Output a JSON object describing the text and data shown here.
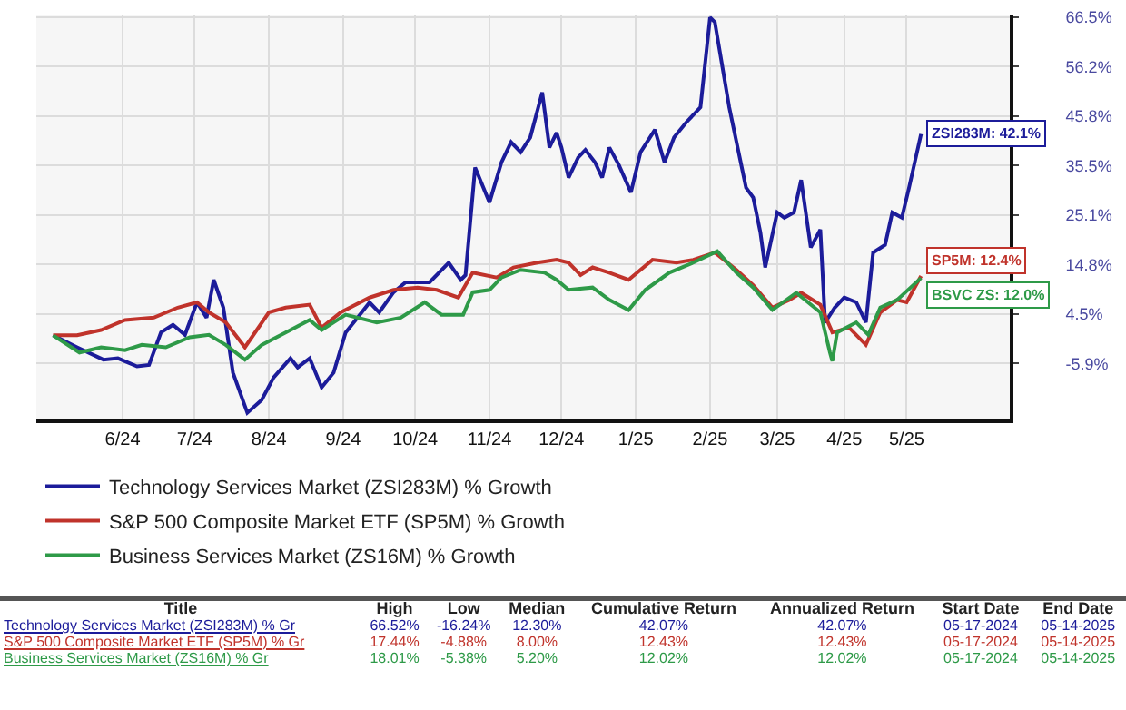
{
  "chart_data": {
    "type": "line",
    "xlim": [
      "2024-05-10",
      "2025-06-20"
    ],
    "xticks": [
      {
        "value": "2024-06-15",
        "label": "6/24"
      },
      {
        "value": "2024-07-15",
        "label": "7/24"
      },
      {
        "value": "2024-08-15",
        "label": "8/24"
      },
      {
        "value": "2024-09-15",
        "label": "9/24"
      },
      {
        "value": "2024-10-15",
        "label": "10/24"
      },
      {
        "value": "2024-11-15",
        "label": "11/24"
      },
      {
        "value": "2024-12-15",
        "label": "12/24"
      },
      {
        "value": "2025-01-15",
        "label": "1/25"
      },
      {
        "value": "2025-02-15",
        "label": "2/25"
      },
      {
        "value": "2025-03-15",
        "label": "3/25"
      },
      {
        "value": "2025-04-12",
        "label": "4/25"
      },
      {
        "value": "2025-05-08",
        "label": "5/25"
      }
    ],
    "ylim": [
      -17.6,
      67.1
    ],
    "yticks": [
      {
        "value": -5.9,
        "label": "-5.9%"
      },
      {
        "value": 4.5,
        "label": "4.5%"
      },
      {
        "value": 14.8,
        "label": "14.8%"
      },
      {
        "value": 25.1,
        "label": "25.1%"
      },
      {
        "value": 35.5,
        "label": "35.5%"
      },
      {
        "value": 45.8,
        "label": "45.8%"
      },
      {
        "value": 56.2,
        "label": "56.2%"
      },
      {
        "value": 66.5,
        "label": "66.5%"
      }
    ],
    "grid": true,
    "legend": "bottom",
    "line_style": "solid",
    "marker": "none",
    "series": [
      {
        "name": "Technology Services Market (ZSI283M) % Growth",
        "color": "#1c1c9a",
        "x": [
          "2024-05-17",
          "2024-05-27",
          "2024-06-07",
          "2024-06-13",
          "2024-06-21",
          "2024-06-26",
          "2024-07-01",
          "2024-07-06",
          "2024-07-11",
          "2024-07-16",
          "2024-07-20",
          "2024-07-23",
          "2024-07-27",
          "2024-07-31",
          "2024-08-06",
          "2024-08-12",
          "2024-08-17",
          "2024-08-24",
          "2024-08-27",
          "2024-09-01",
          "2024-09-06",
          "2024-09-11",
          "2024-09-16",
          "2024-09-21",
          "2024-09-26",
          "2024-09-30",
          "2024-10-06",
          "2024-10-11",
          "2024-10-16",
          "2024-10-21",
          "2024-10-29",
          "2024-11-03",
          "2024-11-05",
          "2024-11-09",
          "2024-11-15",
          "2024-11-20",
          "2024-11-24",
          "2024-11-28",
          "2024-12-02",
          "2024-12-07",
          "2024-12-10",
          "2024-12-13",
          "2024-12-15",
          "2024-12-18",
          "2024-12-22",
          "2024-12-25",
          "2024-12-29",
          "2025-01-01",
          "2025-01-04",
          "2025-01-08",
          "2025-01-13",
          "2025-01-17",
          "2025-01-23",
          "2025-01-27",
          "2025-01-31",
          "2025-02-05",
          "2025-02-11",
          "2025-02-15",
          "2025-02-17",
          "2025-02-23",
          "2025-03-02",
          "2025-03-05",
          "2025-03-08",
          "2025-03-10",
          "2025-03-15",
          "2025-03-18",
          "2025-03-22",
          "2025-03-25",
          "2025-03-29",
          "2025-04-02",
          "2025-04-04",
          "2025-04-08",
          "2025-04-12",
          "2025-04-17",
          "2025-04-21",
          "2025-04-24",
          "2025-04-29",
          "2025-05-02",
          "2025-05-06",
          "2025-05-09",
          "2025-05-14"
        ],
        "values": [
          0,
          -2.5,
          -5.1,
          -4.8,
          -6.5,
          -6.2,
          0.6,
          2.2,
          0.1,
          6.9,
          3.7,
          11.6,
          5.8,
          -7.8,
          -16.2,
          -13.5,
          -8.8,
          -4.8,
          -6.7,
          -4.8,
          -10.9,
          -7.8,
          0.6,
          3.7,
          6.9,
          4.8,
          9.0,
          11.1,
          11.1,
          11.1,
          15.2,
          11.6,
          12.6,
          35.1,
          27.8,
          36.2,
          40.4,
          38.3,
          41.4,
          50.8,
          39.3,
          42.4,
          39.3,
          33.0,
          37.2,
          38.8,
          36.2,
          33.0,
          39.3,
          35.6,
          29.9,
          38.3,
          43.0,
          36.2,
          41.4,
          44.5,
          47.7,
          66.5,
          65.5,
          47.7,
          30.9,
          28.8,
          21.5,
          14.2,
          25.7,
          24.6,
          25.7,
          32.5,
          18.4,
          22.1,
          2.7,
          5.8,
          7.9,
          6.9,
          2.7,
          17.3,
          18.9,
          25.7,
          24.6,
          30.9,
          42.1
        ]
      },
      {
        "name": "S&P 500 Composite Market ETF (SP5M) % Growth",
        "color": "#c0332b",
        "x": [
          "2024-05-17",
          "2024-05-27",
          "2024-06-06",
          "2024-06-16",
          "2024-06-28",
          "2024-07-08",
          "2024-07-16",
          "2024-07-21",
          "2024-07-28",
          "2024-08-05",
          "2024-08-15",
          "2024-08-22",
          "2024-09-01",
          "2024-09-06",
          "2024-09-14",
          "2024-09-26",
          "2024-10-06",
          "2024-10-16",
          "2024-10-24",
          "2024-11-02",
          "2024-11-08",
          "2024-11-18",
          "2024-11-25",
          "2024-12-05",
          "2024-12-13",
          "2024-12-18",
          "2024-12-23",
          "2024-12-28",
          "2025-01-04",
          "2025-01-12",
          "2025-01-22",
          "2025-02-01",
          "2025-02-08",
          "2025-02-17",
          "2025-02-26",
          "2025-03-05",
          "2025-03-13",
          "2025-03-20",
          "2025-03-25",
          "2025-04-02",
          "2025-04-07",
          "2025-04-14",
          "2025-04-21",
          "2025-04-27",
          "2025-05-04",
          "2025-05-08",
          "2025-05-14"
        ],
        "values": [
          0,
          0,
          1.1,
          3.2,
          3.7,
          5.8,
          6.9,
          4.8,
          2.7,
          -2.5,
          4.8,
          5.8,
          6.4,
          1.6,
          4.8,
          7.9,
          9.5,
          10.0,
          9.5,
          7.9,
          13.1,
          12.1,
          14.2,
          15.2,
          15.8,
          15.2,
          12.6,
          14.2,
          13.1,
          11.6,
          15.8,
          15.2,
          15.8,
          17.3,
          13.7,
          10.5,
          5.8,
          7.4,
          8.9,
          6.4,
          0.6,
          1.6,
          -2.0,
          4.8,
          7.4,
          6.9,
          12.4
        ]
      },
      {
        "name": "Business Services Market (ZS16M) % Growth",
        "color": "#2e9a48",
        "x": [
          "2024-05-17",
          "2024-05-28",
          "2024-06-06",
          "2024-06-16",
          "2024-06-23",
          "2024-07-03",
          "2024-07-13",
          "2024-07-21",
          "2024-07-28",
          "2024-08-05",
          "2024-08-12",
          "2024-08-22",
          "2024-09-01",
          "2024-09-06",
          "2024-09-16",
          "2024-09-29",
          "2024-10-09",
          "2024-10-19",
          "2024-10-26",
          "2024-11-04",
          "2024-11-08",
          "2024-11-15",
          "2024-11-20",
          "2024-11-28",
          "2024-12-08",
          "2024-12-13",
          "2024-12-18",
          "2024-12-28",
          "2025-01-04",
          "2025-01-12",
          "2025-01-19",
          "2025-01-29",
          "2025-02-08",
          "2025-02-18",
          "2025-02-26",
          "2025-03-05",
          "2025-03-13",
          "2025-03-23",
          "2025-04-02",
          "2025-04-06",
          "2025-04-07",
          "2025-04-09",
          "2025-04-17",
          "2025-04-22",
          "2025-04-27",
          "2025-05-04",
          "2025-05-14"
        ],
        "values": [
          0,
          -3.6,
          -2.5,
          -3.1,
          -2.0,
          -2.5,
          -0.4,
          0.1,
          -2.0,
          -5.1,
          -2.0,
          0.6,
          3.2,
          1.1,
          4.3,
          2.7,
          3.7,
          6.9,
          4.3,
          4.3,
          9.0,
          9.5,
          12.1,
          13.7,
          13.1,
          11.6,
          9.5,
          10.0,
          7.4,
          5.3,
          9.5,
          13.1,
          15.2,
          17.6,
          13.1,
          10.0,
          5.3,
          8.9,
          4.8,
          -3.6,
          -5.4,
          0.6,
          2.7,
          0.1,
          5.8,
          7.4,
          12.0
        ]
      }
    ],
    "annotations": [
      {
        "text": "ZSI283M: 42.1%",
        "x": "2025-05-14",
        "y": 42.1
      },
      {
        "text": "SP5M: 12.4%",
        "x": "2025-05-14",
        "y": 12.4
      },
      {
        "text": "BSVC ZS: 12.0%",
        "x": "2025-05-14",
        "y": 12.0
      },
      "Title",
      "High",
      "Low",
      "Median",
      "Cumulative Return",
      "Annualized Return",
      "Start Date",
      "End Date",
      "Technology Services Market (ZSI283M) % Gr",
      "66.52%",
      "-16.24%",
      "12.30%",
      "42.07%",
      "42.07%",
      "05-17-2024",
      "05-14-2025",
      "S&P 500 Composite Market ETF (SP5M) % Gr",
      "17.44%",
      "-4.88%",
      "8.00%",
      "12.43%",
      "12.43%",
      "05-17-2024",
      "05-14-2025",
      "Business Services Market (ZS16M) % Gr",
      "18.01%",
      "-5.38%",
      "5.20%",
      "12.02%",
      "12.02%",
      "05-17-2024",
      "05-14-2025"
    ]
  }
}
